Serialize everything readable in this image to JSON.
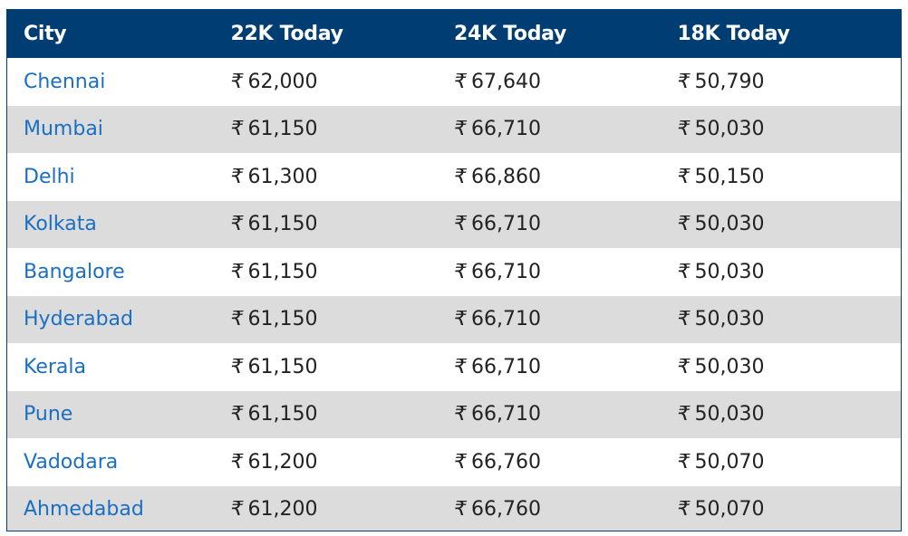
{
  "table": {
    "headers": [
      "City",
      "22K Today",
      "24K Today",
      "18K Today"
    ],
    "currency_symbol": "₹",
    "rows": [
      {
        "city": "Chennai",
        "k22": "62,000",
        "k24": "67,640",
        "k18": "50,790"
      },
      {
        "city": "Mumbai",
        "k22": "61,150",
        "k24": "66,710",
        "k18": "50,030"
      },
      {
        "city": "Delhi",
        "k22": "61,300",
        "k24": "66,860",
        "k18": "50,150"
      },
      {
        "city": "Kolkata",
        "k22": "61,150",
        "k24": "66,710",
        "k18": "50,030"
      },
      {
        "city": "Bangalore",
        "k22": "61,150",
        "k24": "66,710",
        "k18": "50,030"
      },
      {
        "city": "Hyderabad",
        "k22": "61,150",
        "k24": "66,710",
        "k18": "50,030"
      },
      {
        "city": "Kerala",
        "k22": "61,150",
        "k24": "66,710",
        "k18": "50,030"
      },
      {
        "city": "Pune",
        "k22": "61,150",
        "k24": "66,710",
        "k18": "50,030"
      },
      {
        "city": "Vadodara",
        "k22": "61,200",
        "k24": "66,760",
        "k18": "50,070"
      },
      {
        "city": "Ahmedabad",
        "k22": "61,200",
        "k24": "66,760",
        "k18": "50,070"
      }
    ]
  },
  "colors": {
    "header_bg": "#003d73",
    "header_text": "#ffffff",
    "city_link": "#1a6fc4",
    "alt_row_bg": "#dcdcdc"
  }
}
